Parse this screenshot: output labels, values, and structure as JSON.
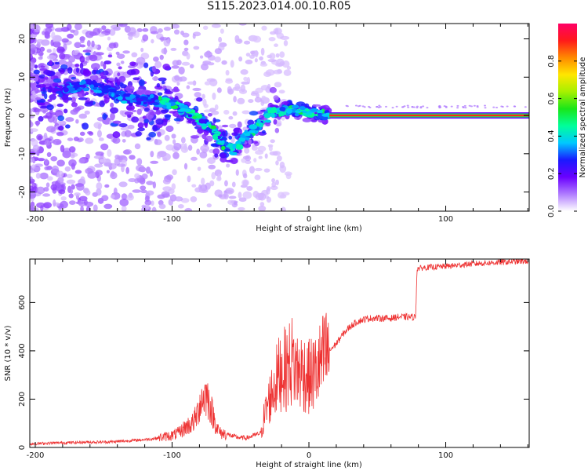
{
  "figure": {
    "title": "S115.2023.014.00.10.R05"
  },
  "chart_data": [
    {
      "type": "heatmap",
      "xlabel": "Height of straight line (km)",
      "ylabel": "Frequency (Hz)",
      "xlim": [
        -204,
        161
      ],
      "ylim": [
        -25,
        24
      ],
      "xticks": [
        -200,
        -100,
        0,
        100
      ],
      "yticks": [
        -20,
        -10,
        0,
        10,
        20
      ],
      "colorbar": {
        "label": "Normalized spectral amplitude",
        "range": [
          0,
          1
        ],
        "ticks": [
          "0.0",
          "0.2",
          "0.4",
          "0.6",
          "0.8"
        ],
        "colormap": [
          "#ffffff",
          "#b07cff",
          "#6a00ff",
          "#1a1aff",
          "#00c8ff",
          "#00ff9a",
          "#19e619",
          "#a6f000",
          "#ffe600",
          "#ff8a00",
          "#ff1a1a",
          "#ff0066"
        ]
      },
      "ridge": [
        {
          "x": -175,
          "f": 7
        },
        {
          "x": -160,
          "f": 8
        },
        {
          "x": -145,
          "f": 6
        },
        {
          "x": -130,
          "f": 4
        },
        {
          "x": -115,
          "f": 4
        },
        {
          "x": -100,
          "f": 3
        },
        {
          "x": -90,
          "f": 1
        },
        {
          "x": -80,
          "f": -1
        },
        {
          "x": -70,
          "f": -4
        },
        {
          "x": -62,
          "f": -8
        },
        {
          "x": -55,
          "f": -9
        },
        {
          "x": -45,
          "f": -5
        },
        {
          "x": -35,
          "f": -2
        },
        {
          "x": -28,
          "f": 1
        },
        {
          "x": -15,
          "f": 1.5
        },
        {
          "x": 0,
          "f": 1
        },
        {
          "x": 15,
          "f": 0
        },
        {
          "x": 160,
          "f": 0
        }
      ],
      "carrier": {
        "f": 0,
        "from_x": 15,
        "to_x": 160
      },
      "grid": false
    },
    {
      "type": "line",
      "xlabel": "Height of straight line (km)",
      "ylabel": "SNR (10 * v/v)",
      "xlim": [
        -204,
        161
      ],
      "ylim": [
        0,
        780
      ],
      "xticks": [
        -200,
        -100,
        0,
        100
      ],
      "yticks": [
        0,
        200,
        400,
        600
      ],
      "color": "#ee3333",
      "series": [
        {
          "x": [
            -204,
            -190,
            -175,
            -160,
            -145,
            -130,
            -115,
            -100,
            -95,
            -90,
            -85,
            -82,
            -80,
            -77,
            -75,
            -73,
            -70,
            -67,
            -65,
            -60,
            -55,
            -50,
            -45,
            -40,
            -35,
            -33,
            -30,
            -27,
            -25,
            -22,
            -20,
            -17,
            -15,
            -12,
            -10,
            -7,
            -5,
            -2,
            0,
            5,
            10,
            15,
            20,
            25,
            30,
            35,
            40,
            45,
            50,
            55,
            60,
            65,
            70,
            77,
            78,
            79,
            85,
            95,
            105,
            115,
            125,
            135,
            145,
            155,
            161
          ],
          "y": [
            15,
            18,
            20,
            22,
            23,
            28,
            35,
            50,
            60,
            85,
            100,
            130,
            180,
            210,
            220,
            190,
            130,
            80,
            60,
            55,
            45,
            40,
            40,
            50,
            60,
            120,
            180,
            230,
            260,
            300,
            330,
            320,
            340,
            360,
            330,
            310,
            320,
            300,
            290,
            310,
            360,
            400,
            430,
            470,
            500,
            520,
            530,
            535,
            535,
            535,
            535,
            540,
            540,
            540,
            540,
            740,
            745,
            748,
            752,
            758,
            762,
            765,
            768,
            770,
            772
          ]
        }
      ],
      "grid": false
    }
  ]
}
